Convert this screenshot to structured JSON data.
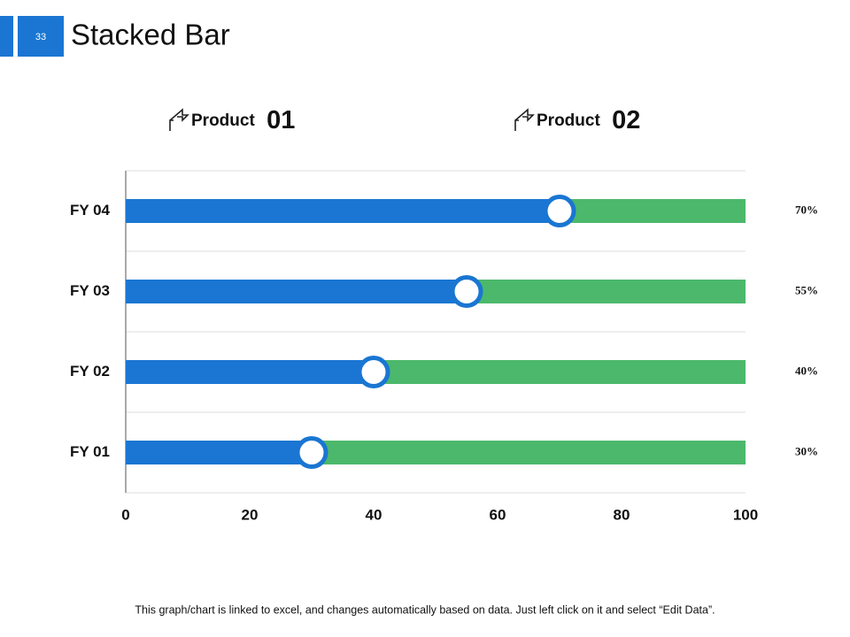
{
  "header": {
    "number": "33",
    "title": "Stacked Bar"
  },
  "footer": "This graph/chart is linked to excel, and changes automatically based on data. Just left click on it and select “Edit Data”.",
  "chart_data": {
    "type": "stacked_barh",
    "categories": [
      "FY  01",
      "FY  02",
      "FY  03",
      "FY  04"
    ],
    "series": [
      {
        "name": "Product 01",
        "color": "#1a76d2",
        "values": [
          30,
          40,
          55,
          70
        ],
        "value_labels": [
          "30%",
          "40%",
          "55%",
          "70%"
        ]
      },
      {
        "name": "Product 02",
        "color": "#4cb86b",
        "values": [
          70,
          60,
          45,
          30
        ]
      }
    ],
    "xlim": [
      0,
      100
    ],
    "xticks": [
      0,
      20,
      40,
      60,
      80,
      100
    ]
  }
}
